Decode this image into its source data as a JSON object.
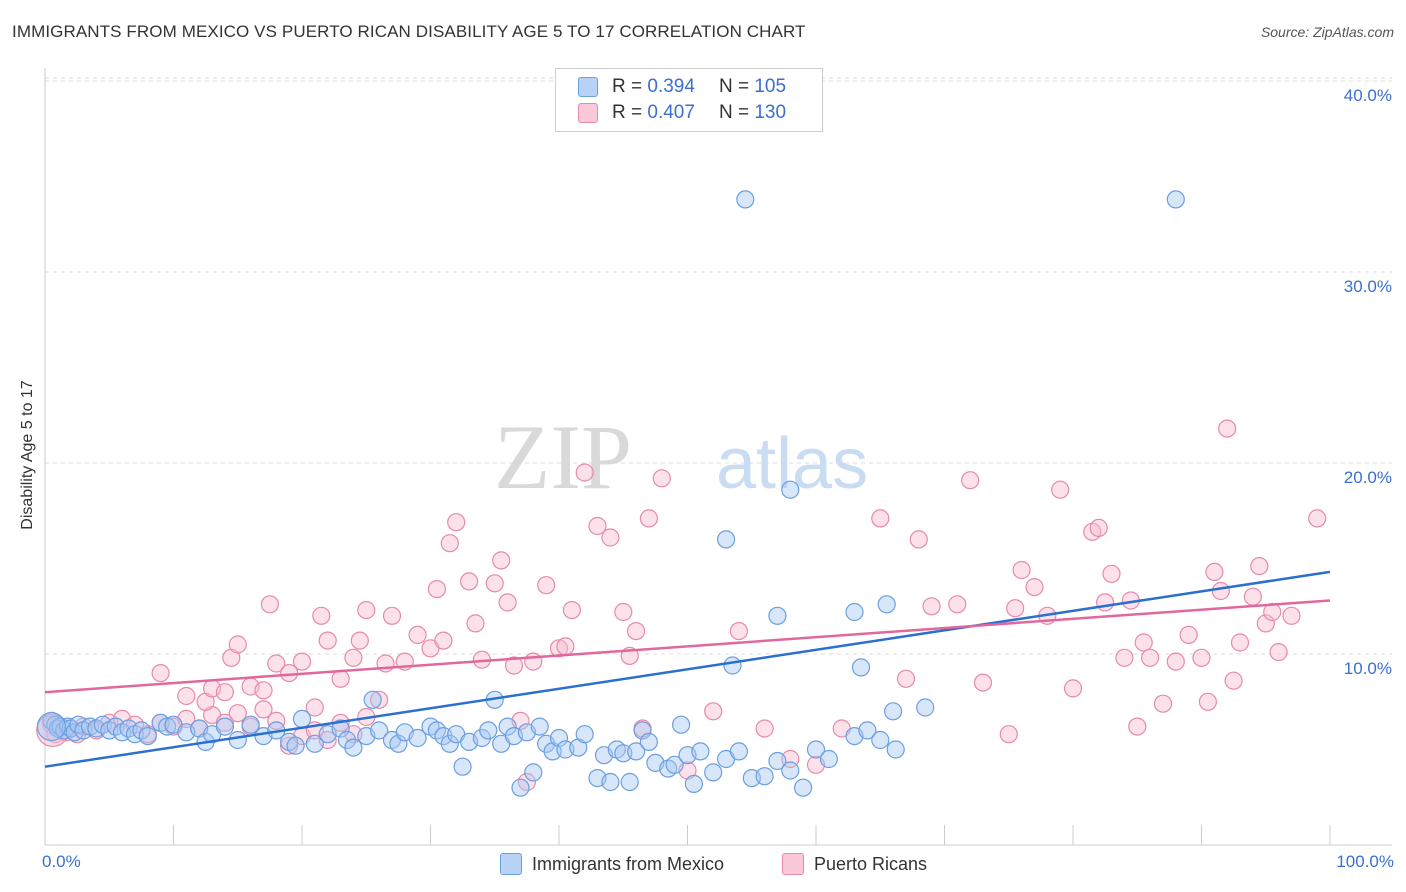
{
  "header": {
    "title": "IMMIGRANTS FROM MEXICO VS PUERTO RICAN DISABILITY AGE 5 TO 17 CORRELATION CHART",
    "source": "Source: ZipAtlas.com"
  },
  "watermark": {
    "zip": "ZIP",
    "atlas": "atlas"
  },
  "legend": {
    "rows": [
      {
        "r_label": "R =",
        "r_value": "0.394",
        "n_label": "N =",
        "n_value": "105"
      },
      {
        "r_label": "R =",
        "r_value": "0.407",
        "n_label": "N =",
        "n_value": "130"
      }
    ]
  },
  "colors": {
    "mexico_fill": "#a9c8f5",
    "mexico_stroke": "#6a9fe0",
    "mexico_line": "#2b6fd0",
    "pr_fill": "#f8bcd0",
    "pr_stroke": "#e68aaa",
    "pr_line": "#e0689a",
    "tick_text": "#3a6fd0",
    "grid": "#dddddd"
  },
  "chart_data": {
    "type": "scatter",
    "xlabel": "",
    "ylabel": "Disability Age 5 to 17",
    "xlim": [
      0,
      100
    ],
    "ylim": [
      0,
      42
    ],
    "x_ticks": [
      "0.0%",
      "100.0%"
    ],
    "y_ticks": [
      {
        "value": 10,
        "label": "10.0%"
      },
      {
        "value": 20,
        "label": "20.0%"
      },
      {
        "value": 30,
        "label": "30.0%"
      },
      {
        "value": 40,
        "label": "40.0%"
      }
    ],
    "grid": true,
    "legend_position": "top-center",
    "series": [
      {
        "name": "Immigrants from Mexico",
        "trend": {
          "x": [
            0,
            100
          ],
          "y": [
            4.1,
            14.3
          ]
        },
        "points": [
          [
            0.5,
            6.5
          ],
          [
            0.8,
            6.3
          ],
          [
            1.0,
            6.1
          ],
          [
            1.2,
            6.2
          ],
          [
            1.5,
            6.0
          ],
          [
            1.8,
            6.2
          ],
          [
            2.0,
            6.1
          ],
          [
            2.3,
            5.9
          ],
          [
            2.6,
            6.3
          ],
          [
            3.0,
            6.0
          ],
          [
            3.5,
            6.2
          ],
          [
            4.0,
            6.1
          ],
          [
            4.5,
            6.3
          ],
          [
            5.0,
            6.0
          ],
          [
            5.5,
            6.2
          ],
          [
            6.0,
            5.9
          ],
          [
            6.5,
            6.1
          ],
          [
            7.0,
            5.8
          ],
          [
            7.5,
            6.0
          ],
          [
            8.0,
            5.7
          ],
          [
            9.0,
            6.4
          ],
          [
            9.5,
            6.2
          ],
          [
            10.0,
            6.3
          ],
          [
            11.0,
            5.9
          ],
          [
            12.0,
            6.1
          ],
          [
            12.5,
            5.4
          ],
          [
            13.0,
            5.8
          ],
          [
            14.0,
            6.2
          ],
          [
            15.0,
            5.5
          ],
          [
            16.0,
            6.3
          ],
          [
            17.0,
            5.7
          ],
          [
            18.0,
            6.0
          ],
          [
            19.0,
            5.4
          ],
          [
            19.5,
            5.2
          ],
          [
            20.0,
            6.6
          ],
          [
            21.0,
            5.3
          ],
          [
            22.0,
            5.8
          ],
          [
            23.0,
            6.1
          ],
          [
            23.5,
            5.5
          ],
          [
            24.0,
            5.1
          ],
          [
            25.0,
            5.7
          ],
          [
            25.5,
            7.6
          ],
          [
            26.0,
            6.0
          ],
          [
            27.0,
            5.5
          ],
          [
            27.5,
            5.3
          ],
          [
            28.0,
            5.9
          ],
          [
            29.0,
            5.6
          ],
          [
            30.0,
            6.2
          ],
          [
            30.5,
            6.0
          ],
          [
            31.0,
            5.7
          ],
          [
            31.5,
            5.3
          ],
          [
            32.0,
            5.8
          ],
          [
            32.5,
            4.1
          ],
          [
            33.0,
            5.4
          ],
          [
            34.0,
            5.6
          ],
          [
            34.5,
            6.0
          ],
          [
            35.0,
            7.6
          ],
          [
            35.5,
            5.3
          ],
          [
            36.0,
            6.2
          ],
          [
            36.5,
            5.7
          ],
          [
            37.0,
            3.0
          ],
          [
            37.5,
            5.9
          ],
          [
            38.0,
            3.8
          ],
          [
            38.5,
            6.2
          ],
          [
            39.0,
            5.3
          ],
          [
            39.5,
            4.9
          ],
          [
            40.0,
            5.6
          ],
          [
            40.5,
            5.0
          ],
          [
            41.5,
            5.1
          ],
          [
            42.0,
            5.8
          ],
          [
            43.0,
            3.5
          ],
          [
            43.5,
            4.7
          ],
          [
            44.0,
            3.3
          ],
          [
            44.5,
            5.0
          ],
          [
            45.0,
            4.8
          ],
          [
            45.5,
            3.3
          ],
          [
            46.0,
            4.9
          ],
          [
            46.5,
            6.0
          ],
          [
            47.0,
            5.4
          ],
          [
            47.5,
            4.3
          ],
          [
            48.5,
            4.0
          ],
          [
            49.0,
            4.2
          ],
          [
            49.5,
            6.3
          ],
          [
            50.0,
            4.7
          ],
          [
            50.5,
            3.2
          ],
          [
            51.0,
            4.9
          ],
          [
            52.0,
            3.8
          ],
          [
            53.0,
            4.5
          ],
          [
            54.0,
            4.9
          ],
          [
            55.0,
            3.5
          ],
          [
            56.0,
            3.6
          ],
          [
            57.0,
            4.4
          ],
          [
            58.0,
            3.9
          ],
          [
            59.0,
            3.0
          ],
          [
            60.0,
            5.0
          ],
          [
            61.0,
            4.5
          ],
          [
            63.0,
            5.7
          ],
          [
            64.0,
            6.0
          ],
          [
            65.0,
            5.5
          ],
          [
            66.0,
            7.0
          ],
          [
            53.5,
            9.4
          ],
          [
            57.0,
            12.0
          ],
          [
            63.0,
            12.2
          ],
          [
            53.0,
            16.0
          ],
          [
            58.0,
            18.6
          ],
          [
            63.5,
            9.3
          ],
          [
            65.5,
            12.6
          ],
          [
            68.5,
            7.2
          ],
          [
            66.2,
            5.0
          ],
          [
            54.5,
            33.8
          ],
          [
            88.0,
            33.8
          ]
        ]
      },
      {
        "name": "Puerto Ricans",
        "trend": {
          "x": [
            0,
            100
          ],
          "y": [
            8.0,
            12.8
          ]
        },
        "points": [
          [
            0.5,
            6.3
          ],
          [
            0.8,
            5.8
          ],
          [
            1.0,
            6.2
          ],
          [
            1.3,
            6.0
          ],
          [
            1.6,
            5.9
          ],
          [
            2.0,
            6.1
          ],
          [
            2.5,
            5.8
          ],
          [
            3.0,
            6.2
          ],
          [
            4.0,
            6.0
          ],
          [
            5.0,
            6.4
          ],
          [
            6.0,
            6.6
          ],
          [
            7.0,
            6.3
          ],
          [
            8.0,
            5.8
          ],
          [
            9.0,
            6.4
          ],
          [
            10.0,
            6.2
          ],
          [
            11.0,
            6.6
          ],
          [
            12.0,
            6.1
          ],
          [
            13.0,
            6.8
          ],
          [
            14.0,
            6.4
          ],
          [
            15.0,
            6.9
          ],
          [
            16.0,
            6.2
          ],
          [
            17.0,
            7.1
          ],
          [
            18.0,
            6.5
          ],
          [
            19.0,
            5.2
          ],
          [
            20.0,
            5.7
          ],
          [
            21.0,
            6.0
          ],
          [
            22.0,
            5.5
          ],
          [
            23.0,
            6.4
          ],
          [
            24.0,
            5.8
          ],
          [
            25.0,
            6.7
          ],
          [
            9.0,
            9.0
          ],
          [
            11.0,
            7.8
          ],
          [
            12.5,
            7.5
          ],
          [
            13.0,
            8.2
          ],
          [
            14.0,
            8.0
          ],
          [
            14.5,
            9.8
          ],
          [
            15.0,
            10.5
          ],
          [
            16.0,
            8.3
          ],
          [
            17.0,
            8.1
          ],
          [
            17.5,
            12.6
          ],
          [
            18.0,
            9.5
          ],
          [
            19.0,
            9.0
          ],
          [
            20.0,
            9.6
          ],
          [
            21.0,
            7.2
          ],
          [
            21.5,
            12.0
          ],
          [
            22.0,
            10.7
          ],
          [
            23.0,
            8.7
          ],
          [
            24.0,
            9.8
          ],
          [
            24.5,
            10.7
          ],
          [
            25.0,
            12.3
          ],
          [
            26.0,
            7.6
          ],
          [
            26.5,
            9.5
          ],
          [
            27.0,
            12.0
          ],
          [
            28.0,
            9.6
          ],
          [
            29.0,
            11.0
          ],
          [
            30.0,
            10.3
          ],
          [
            30.5,
            13.4
          ],
          [
            31.0,
            10.7
          ],
          [
            31.5,
            15.8
          ],
          [
            32.0,
            16.9
          ],
          [
            33.0,
            13.8
          ],
          [
            33.5,
            11.6
          ],
          [
            34.0,
            9.7
          ],
          [
            35.0,
            13.7
          ],
          [
            35.5,
            14.9
          ],
          [
            36.0,
            12.7
          ],
          [
            36.5,
            9.4
          ],
          [
            37.0,
            6.5
          ],
          [
            37.5,
            3.3
          ],
          [
            38.0,
            9.6
          ],
          [
            39.0,
            13.6
          ],
          [
            40.0,
            10.3
          ],
          [
            40.5,
            10.4
          ],
          [
            41.0,
            12.3
          ],
          [
            42.0,
            19.5
          ],
          [
            43.0,
            16.7
          ],
          [
            44.0,
            16.1
          ],
          [
            45.0,
            12.2
          ],
          [
            45.5,
            9.9
          ],
          [
            46.0,
            11.2
          ],
          [
            46.5,
            6.1
          ],
          [
            47.0,
            17.1
          ],
          [
            48.0,
            19.2
          ],
          [
            50.0,
            3.9
          ],
          [
            52.0,
            7.0
          ],
          [
            54.0,
            11.2
          ],
          [
            56.0,
            6.1
          ],
          [
            58.0,
            4.5
          ],
          [
            60.0,
            4.2
          ],
          [
            62.0,
            6.1
          ],
          [
            65.0,
            17.1
          ],
          [
            67.0,
            8.7
          ],
          [
            68.0,
            16.0
          ],
          [
            69.0,
            12.5
          ],
          [
            71.0,
            12.6
          ],
          [
            72.0,
            19.1
          ],
          [
            73.0,
            8.5
          ],
          [
            75.0,
            5.8
          ],
          [
            75.5,
            12.4
          ],
          [
            76.0,
            14.4
          ],
          [
            77.0,
            13.5
          ],
          [
            78.0,
            12.0
          ],
          [
            79.0,
            18.6
          ],
          [
            80.0,
            8.2
          ],
          [
            81.5,
            16.4
          ],
          [
            82.0,
            16.6
          ],
          [
            82.5,
            12.7
          ],
          [
            83.0,
            14.2
          ],
          [
            84.0,
            9.8
          ],
          [
            84.5,
            12.8
          ],
          [
            85.0,
            6.2
          ],
          [
            85.5,
            10.6
          ],
          [
            86.0,
            9.8
          ],
          [
            87.0,
            7.4
          ],
          [
            88.0,
            9.6
          ],
          [
            89.0,
            11.0
          ],
          [
            90.0,
            9.8
          ],
          [
            90.5,
            7.5
          ],
          [
            91.0,
            14.3
          ],
          [
            91.5,
            13.3
          ],
          [
            92.0,
            21.8
          ],
          [
            92.5,
            8.6
          ],
          [
            93.0,
            10.6
          ],
          [
            94.0,
            13.0
          ],
          [
            94.5,
            14.6
          ],
          [
            95.0,
            11.6
          ],
          [
            95.5,
            12.2
          ],
          [
            96.0,
            10.1
          ],
          [
            97.0,
            12.0
          ],
          [
            99.0,
            17.1
          ]
        ]
      }
    ]
  },
  "bottom_legend": {
    "mexico": "Immigrants from Mexico",
    "pr": "Puerto Ricans"
  }
}
